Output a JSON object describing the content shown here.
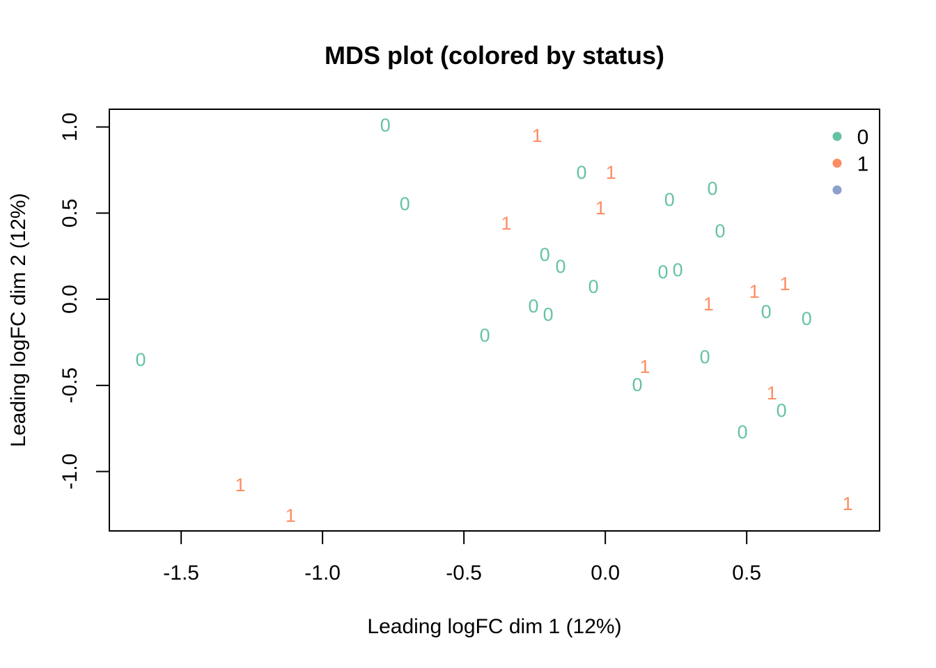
{
  "chart_data": {
    "type": "scatter",
    "title": "MDS plot (colored by status)",
    "xlabel": "Leading logFC dim 1 (12%)",
    "ylabel": "Leading logFC dim 2 (12%)",
    "xlim": [
      -1.754,
      0.97
    ],
    "ylim": [
      -1.345,
      1.103
    ],
    "xticks": [
      -1.5,
      -1.0,
      -0.5,
      0.0,
      0.5
    ],
    "xtick_labels": [
      "-1.5",
      "-1.0",
      "-0.5",
      "0.0",
      "0.5"
    ],
    "yticks": [
      -1.0,
      -0.5,
      0.0,
      0.5,
      1.0
    ],
    "ytick_labels": [
      "-1.0",
      "-0.5",
      "0.0",
      "0.5",
      "1.0"
    ],
    "grid": false,
    "legend_position": "top-right",
    "legend": [
      {
        "label": "0",
        "color": "#66C2A5"
      },
      {
        "label": "1",
        "color": "#FC8D62"
      },
      {
        "label": "",
        "color": "#8DA0CB"
      }
    ],
    "points": [
      {
        "x": -0.778,
        "y": 1.01,
        "label": "0"
      },
      {
        "x": -0.241,
        "y": 0.95,
        "label": "1"
      },
      {
        "x": -0.084,
        "y": 0.735,
        "label": "0"
      },
      {
        "x": 0.02,
        "y": 0.735,
        "label": "1"
      },
      {
        "x": 0.379,
        "y": 0.642,
        "label": "0"
      },
      {
        "x": 0.227,
        "y": 0.578,
        "label": "0"
      },
      {
        "x": -0.709,
        "y": 0.554,
        "label": "0"
      },
      {
        "x": -0.017,
        "y": 0.529,
        "label": "1"
      },
      {
        "x": -0.35,
        "y": 0.44,
        "label": "1"
      },
      {
        "x": 0.406,
        "y": 0.396,
        "label": "0"
      },
      {
        "x": -0.214,
        "y": 0.259,
        "label": "0"
      },
      {
        "x": -0.158,
        "y": 0.19,
        "label": "0"
      },
      {
        "x": 0.204,
        "y": 0.158,
        "label": "0"
      },
      {
        "x": 0.256,
        "y": 0.17,
        "label": "0"
      },
      {
        "x": -0.042,
        "y": 0.073,
        "label": "0"
      },
      {
        "x": 0.527,
        "y": 0.044,
        "label": "1"
      },
      {
        "x": 0.635,
        "y": 0.089,
        "label": "1"
      },
      {
        "x": 0.365,
        "y": -0.028,
        "label": "1"
      },
      {
        "x": -0.254,
        "y": -0.04,
        "label": "0"
      },
      {
        "x": -0.202,
        "y": -0.089,
        "label": "0"
      },
      {
        "x": 0.569,
        "y": -0.073,
        "label": "0"
      },
      {
        "x": 0.712,
        "y": -0.113,
        "label": "0"
      },
      {
        "x": -0.426,
        "y": -0.21,
        "label": "0"
      },
      {
        "x": -1.643,
        "y": -0.352,
        "label": "0"
      },
      {
        "x": 0.352,
        "y": -0.335,
        "label": "0"
      },
      {
        "x": 0.14,
        "y": -0.392,
        "label": "1"
      },
      {
        "x": 0.113,
        "y": -0.497,
        "label": "0"
      },
      {
        "x": 0.589,
        "y": -0.545,
        "label": "1"
      },
      {
        "x": 0.623,
        "y": -0.646,
        "label": "0"
      },
      {
        "x": 0.485,
        "y": -0.772,
        "label": "0"
      },
      {
        "x": -1.291,
        "y": -1.079,
        "label": "1"
      },
      {
        "x": -1.113,
        "y": -1.257,
        "label": "1"
      },
      {
        "x": 0.857,
        "y": -1.188,
        "label": "1"
      }
    ]
  }
}
